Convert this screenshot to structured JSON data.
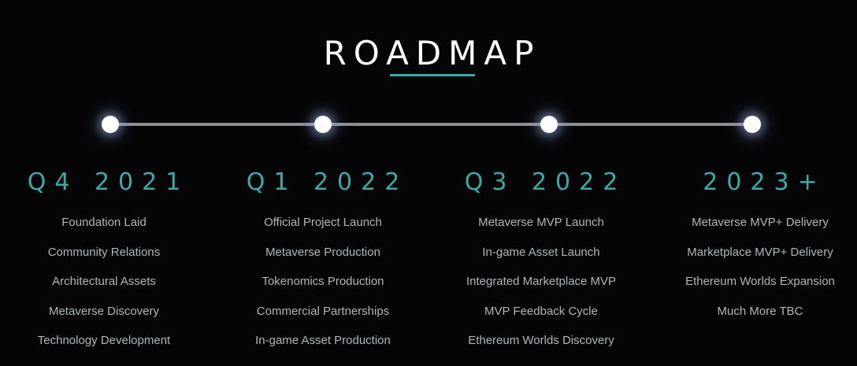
{
  "header": {
    "title": "ROADMAP"
  },
  "colors": {
    "background": "#050507",
    "accent": "#3fa9a9",
    "text": "#aeb5bb",
    "node": "#ffffff"
  },
  "phases": [
    {
      "period": "Q4 2021",
      "items": [
        "Foundation Laid",
        "Community Relations",
        "Architectural Assets",
        "Metaverse Discovery",
        "Technology Development"
      ]
    },
    {
      "period": "Q1 2022",
      "items": [
        "Official Project Launch",
        "Metaverse Production",
        "Tokenomics Production",
        "Commercial Partnerships",
        "In-game Asset Production"
      ]
    },
    {
      "period": "Q3 2022",
      "items": [
        "Metaverse MVP Launch",
        "In-game Asset Launch",
        "Integrated Marketplace MVP",
        "MVP Feedback Cycle",
        "Ethereum Worlds Discovery"
      ]
    },
    {
      "period": "2023+",
      "items": [
        "Metaverse MVP+ Delivery",
        "Marketplace MVP+ Delivery",
        "Ethereum Worlds Expansion",
        "Much More TBC"
      ]
    }
  ]
}
